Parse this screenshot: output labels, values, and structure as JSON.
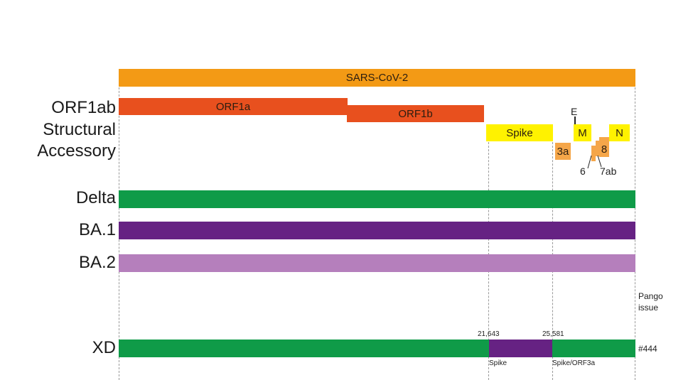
{
  "genome": {
    "label": "SARS-CoV-2",
    "color": "#f39a15"
  },
  "row_labels": {
    "orf1ab": "ORF1ab",
    "structural": "Structural",
    "accessory": "Accessory",
    "delta": "Delta",
    "ba1": "BA.1",
    "ba2": "BA.2",
    "xd": "XD"
  },
  "genes": {
    "orf1a": "ORF1a",
    "orf1b": "ORF1b",
    "spike": "Spike",
    "e": "E",
    "m": "M",
    "n": "N",
    "g3a": "3a",
    "g6": "6",
    "g7ab": "7ab",
    "g8": "8"
  },
  "colors": {
    "orf1ab": "#e8501e",
    "structural": "#fff200",
    "accessory": "#f5a649",
    "delta": "#0f9b48",
    "ba1": "#662283",
    "ba2": "#b57fbc"
  },
  "breakpoints": {
    "bp1": "21,643",
    "bp2": "25,581",
    "region1": "Spike",
    "region2": "Spike/ORF3a"
  },
  "pango": {
    "line1": "Pango",
    "line2": "issue",
    "issue": "#444"
  }
}
